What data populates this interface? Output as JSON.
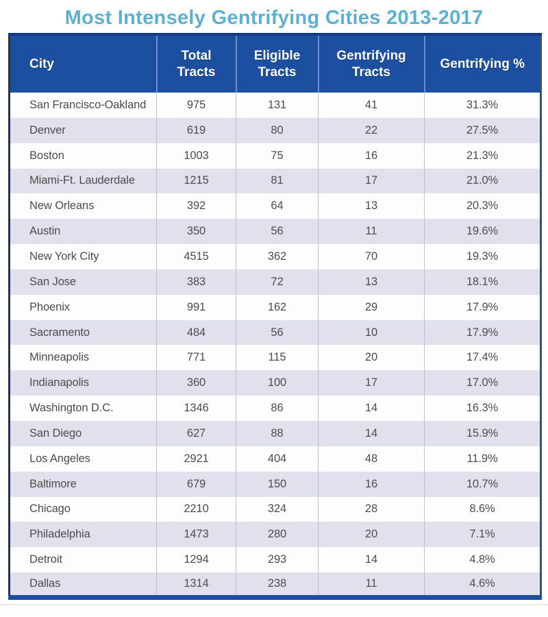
{
  "title": "Most Intensely Gentrifying Cities 2013-2017",
  "colors": {
    "title_text": "#5cb0d4",
    "header_bg": "#1d4fa1",
    "header_text": "#ffffff",
    "header_divider": "#6d8ecd",
    "row_bg": "#fdfdfe",
    "row_alt_bg": "#e1e1ee",
    "cell_text": "#4c4c4c",
    "bottom_bar": "#1d4fa1"
  },
  "chart_data": {
    "type": "table",
    "title": "Most Intensely Gentrifying Cities 2013-2017",
    "columns": [
      "City",
      "Total Tracts",
      "Eligible Tracts",
      "Gentrifying Tracts",
      "Gentrifying %"
    ],
    "rows": [
      [
        "San Francisco-Oakland",
        "975",
        "131",
        "41",
        "31.3%"
      ],
      [
        "Denver",
        "619",
        "80",
        "22",
        "27.5%"
      ],
      [
        "Boston",
        "1003",
        "75",
        "16",
        "21.3%"
      ],
      [
        "Miami-Ft. Lauderdale",
        "1215",
        "81",
        "17",
        "21.0%"
      ],
      [
        "New Orleans",
        "392",
        "64",
        "13",
        "20.3%"
      ],
      [
        "Austin",
        "350",
        "56",
        "11",
        "19.6%"
      ],
      [
        "New York City",
        "4515",
        "362",
        "70",
        "19.3%"
      ],
      [
        "San Jose",
        "383",
        "72",
        "13",
        "18.1%"
      ],
      [
        "Phoenix",
        "991",
        "162",
        "29",
        "17.9%"
      ],
      [
        "Sacramento",
        "484",
        "56",
        "10",
        "17.9%"
      ],
      [
        "Minneapolis",
        "771",
        "115",
        "20",
        "17.4%"
      ],
      [
        "Indianapolis",
        "360",
        "100",
        "17",
        "17.0%"
      ],
      [
        "Washington D.C.",
        "1346",
        "86",
        "14",
        "16.3%"
      ],
      [
        "San Diego",
        "627",
        "88",
        "14",
        "15.9%"
      ],
      [
        "Los Angeles",
        "2921",
        "404",
        "48",
        "11.9%"
      ],
      [
        "Baltimore",
        "679",
        "150",
        "16",
        "10.7%"
      ],
      [
        "Chicago",
        "2210",
        "324",
        "28",
        "8.6%"
      ],
      [
        "Philadelphia",
        "1473",
        "280",
        "20",
        "7.1%"
      ],
      [
        "Detroit",
        "1294",
        "293",
        "14",
        "4.8%"
      ],
      [
        "Dallas",
        "1314",
        "238",
        "11",
        "4.6%"
      ]
    ]
  }
}
